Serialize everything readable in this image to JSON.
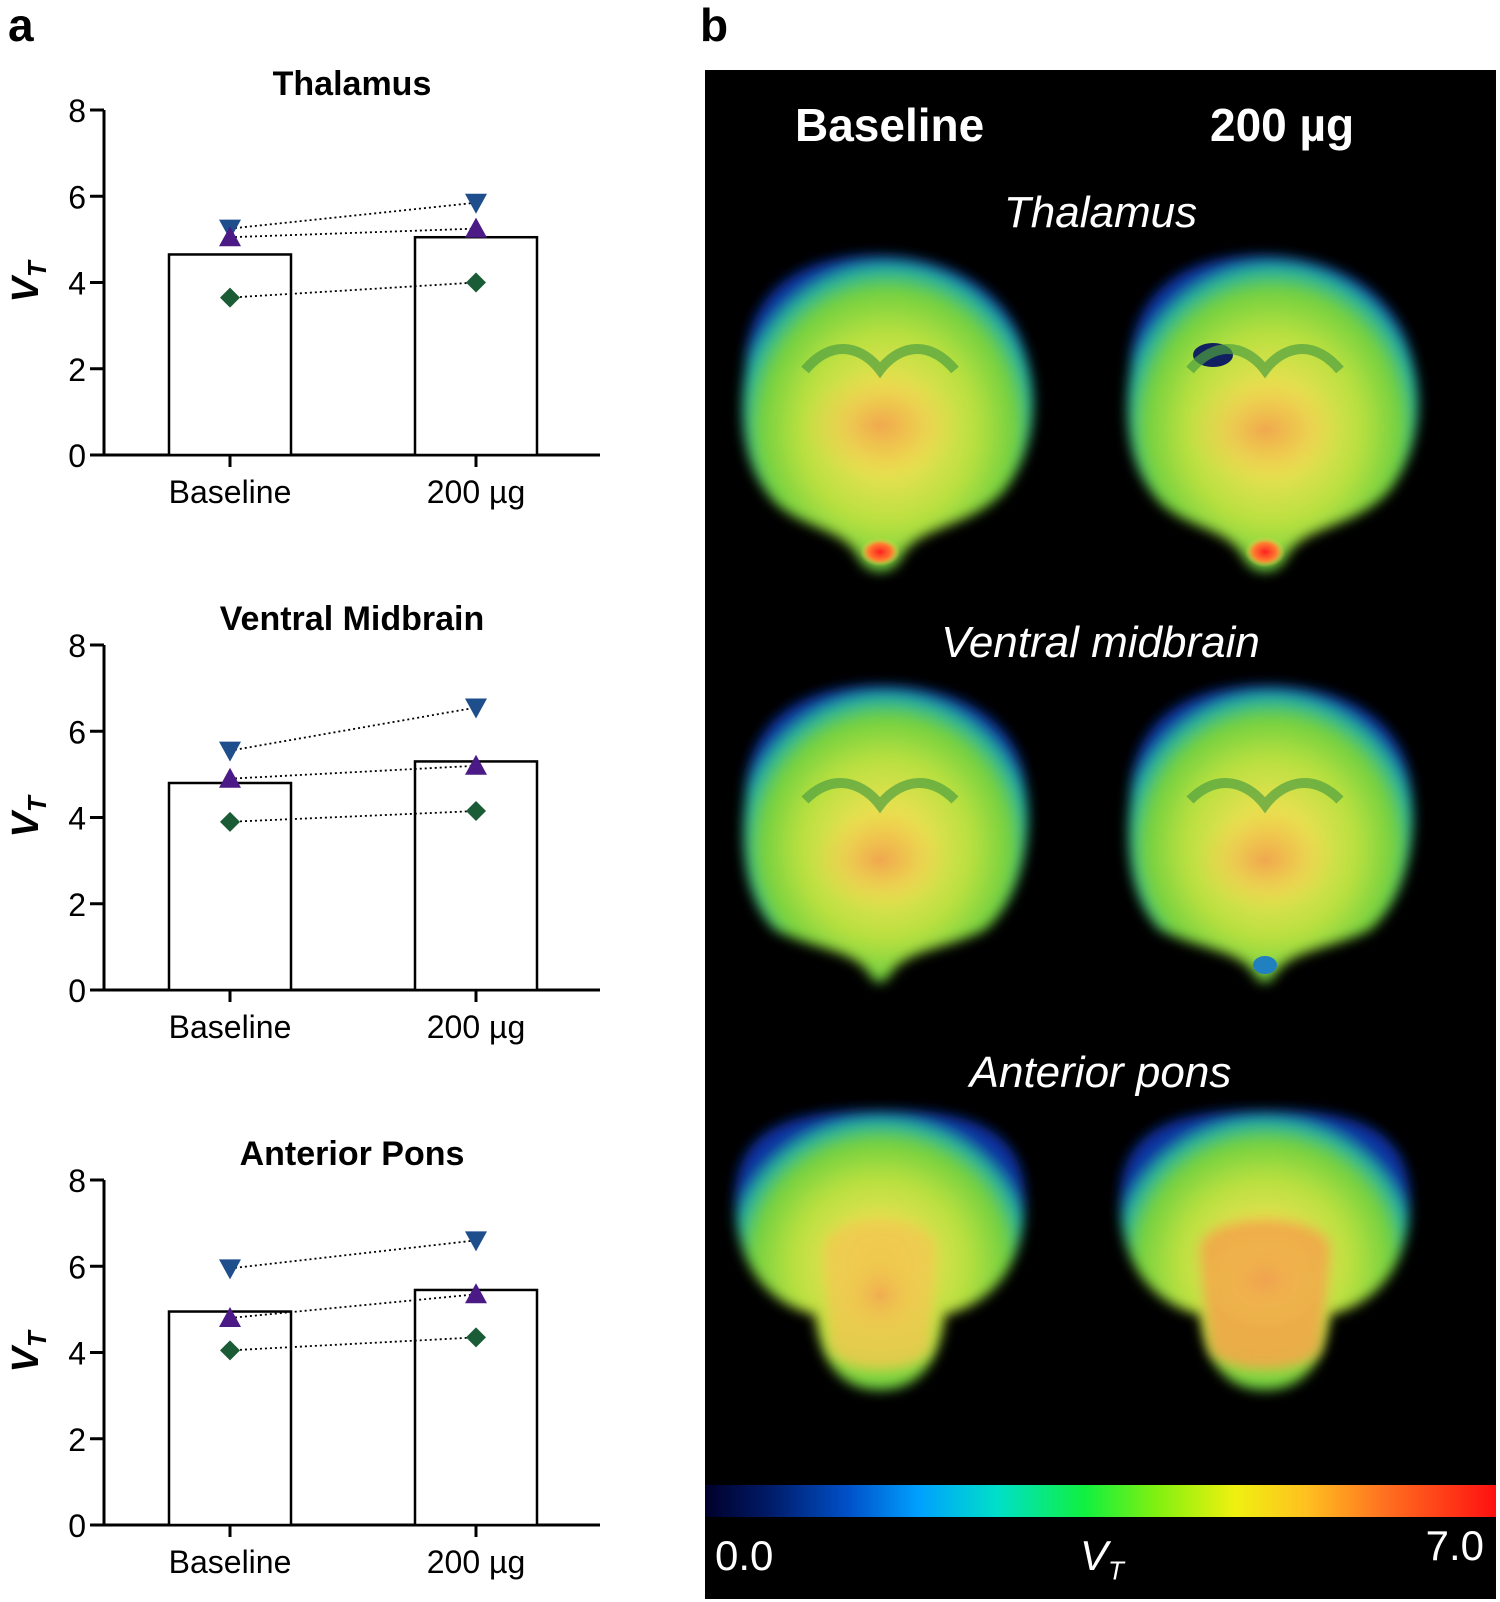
{
  "panel_a_letter": "a",
  "panel_b_letter": "b",
  "chart_data": [
    {
      "type": "bar",
      "title": "Thalamus",
      "ylabel": "V",
      "ylabel_sub": "T",
      "categories": [
        "Baseline",
        "200 µg"
      ],
      "values": [
        4.65,
        5.05
      ],
      "ylim": [
        0,
        8
      ],
      "yticks": [
        0,
        2,
        4,
        6,
        8
      ],
      "series": [
        {
          "marker": "triangle-down",
          "color": "#1f4e8c",
          "values": [
            5.25,
            5.85
          ]
        },
        {
          "marker": "triangle-up",
          "color": "#4b1a86",
          "values": [
            5.05,
            5.25
          ]
        },
        {
          "marker": "diamond",
          "color": "#1a5c36",
          "values": [
            3.65,
            4.0
          ]
        }
      ]
    },
    {
      "type": "bar",
      "title": "Ventral Midbrain",
      "ylabel": "V",
      "ylabel_sub": "T",
      "categories": [
        "Baseline",
        "200 µg"
      ],
      "values": [
        4.8,
        5.3
      ],
      "ylim": [
        0,
        8
      ],
      "yticks": [
        0,
        2,
        4,
        6,
        8
      ],
      "series": [
        {
          "marker": "triangle-down",
          "color": "#1f4e8c",
          "values": [
            5.55,
            6.55
          ]
        },
        {
          "marker": "triangle-up",
          "color": "#4b1a86",
          "values": [
            4.9,
            5.2
          ]
        },
        {
          "marker": "diamond",
          "color": "#1a5c36",
          "values": [
            3.9,
            4.15
          ]
        }
      ]
    },
    {
      "type": "bar",
      "title": "Anterior Pons",
      "ylabel": "V",
      "ylabel_sub": "T",
      "categories": [
        "Baseline",
        "200 µg"
      ],
      "values": [
        4.95,
        5.45
      ],
      "ylim": [
        0,
        8
      ],
      "yticks": [
        0,
        2,
        4,
        6,
        8
      ],
      "series": [
        {
          "marker": "triangle-down",
          "color": "#1f4e8c",
          "values": [
            5.95,
            6.6
          ]
        },
        {
          "marker": "triangle-up",
          "color": "#4b1a86",
          "values": [
            4.8,
            5.35
          ]
        },
        {
          "marker": "diamond",
          "color": "#1a5c36",
          "values": [
            4.05,
            4.35
          ]
        }
      ]
    }
  ],
  "panel_b": {
    "col_baseline": "Baseline",
    "col_dose": "200 µg",
    "regions": [
      "Thalamus",
      "Ventral midbrain",
      "Anterior pons"
    ],
    "colorbar_min": "0.0",
    "colorbar_max": "7.0",
    "colorbar_label": "V",
    "colorbar_label_sub": "T"
  }
}
